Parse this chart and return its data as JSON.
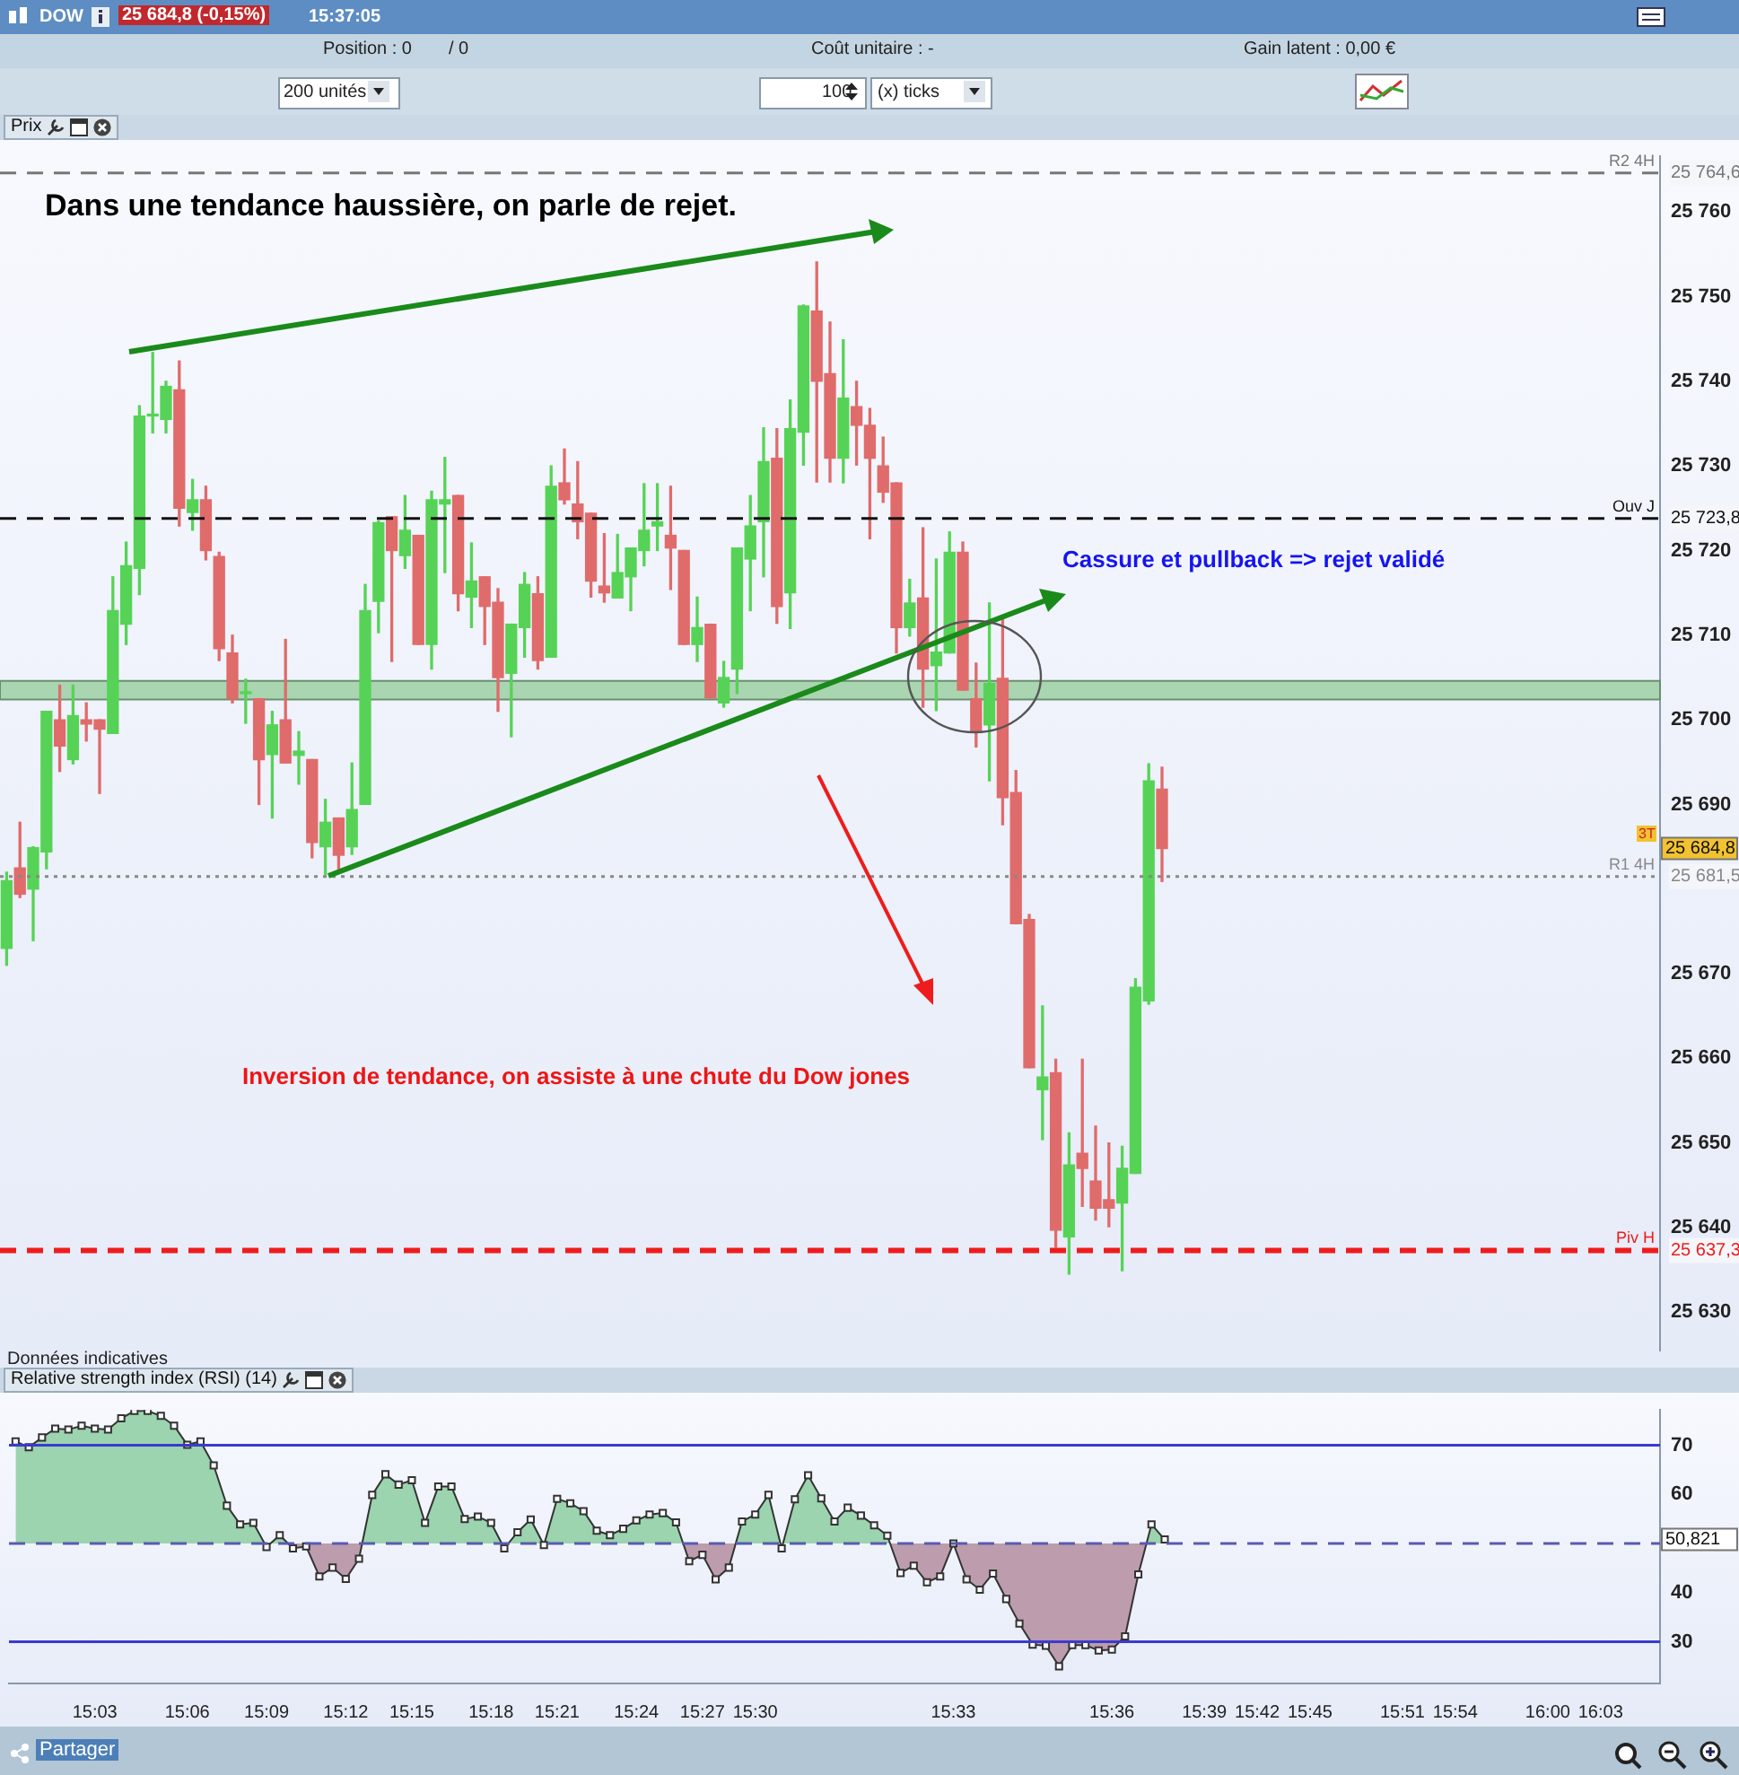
{
  "chart_data": [
    {
      "type": "other",
      "annotations": [
        "DOW",
        "25 684,8 (-0,15%)",
        "15:37:05",
        "Position : 0",
        "/ 0",
        "Coût unitaire : -",
        "Gain latent : 0,00 €",
        "200 unités",
        "100",
        "(x) ticks",
        "Partager"
      ]
    },
    {
      "type": "candlestick",
      "title": "Prix",
      "categories": [
        null,
        null,
        null,
        null,
        null,
        null,
        null,
        null,
        null,
        null,
        null,
        null,
        null,
        null,
        null,
        null,
        null,
        null,
        null,
        null,
        null,
        null,
        null,
        null,
        null,
        null,
        null,
        null,
        null,
        null,
        null,
        null,
        null,
        null,
        null,
        null,
        null,
        null,
        null,
        null,
        null,
        null,
        null,
        null,
        null,
        null,
        null,
        null,
        null,
        null,
        null,
        null,
        null,
        null,
        null,
        null,
        null,
        null,
        null,
        null,
        null,
        null,
        null,
        null,
        null,
        null,
        null,
        null,
        null,
        null,
        null,
        null,
        null,
        null,
        null,
        null,
        null,
        null,
        null,
        null,
        null,
        null,
        null,
        null,
        null,
        null,
        null,
        null,
        null,
        null,
        null,
        null,
        null,
        null,
        null,
        null,
        null,
        null,
        null,
        null,
        null,
        null,
        null,
        null,
        null,
        null,
        null,
        null,
        null,
        null,
        null,
        null,
        null,
        null,
        null,
        null,
        null,
        null,
        null,
        null,
        null,
        null,
        null,
        null,
        null
      ],
      "ohlc": [
        [
          25673,
          25682,
          25671,
          25681
        ],
        [
          25682.5,
          25687.9,
          25679,
          25679.4
        ],
        [
          25680,
          25685,
          25673.9,
          25684.9
        ],
        [
          25684.4,
          25701,
          25682.4,
          25701
        ],
        [
          25700,
          25704.1,
          25693.9,
          25696.9
        ],
        [
          25695.3,
          25704.1,
          25694.8,
          25700.5
        ],
        [
          25700,
          25702,
          25697.5,
          25699.5
        ],
        [
          25700,
          25700,
          25691.3,
          25698.9
        ],
        [
          25698.4,
          25716.9,
          25698.4,
          25712.9
        ],
        [
          25711.3,
          25721,
          25708.9,
          25718.2
        ],
        [
          25717.9,
          25737.1,
          25714.8,
          25735.9
        ],
        [
          25735.9,
          25743.4,
          25733.9,
          25735.9
        ],
        [
          25735.5,
          25740,
          25733.9,
          25739.4
        ],
        [
          25739,
          25742.4,
          25722.9,
          25725
        ],
        [
          25724.5,
          25728.4,
          25722.4,
          25726
        ],
        [
          25726,
          25727.6,
          25718.9,
          25720
        ],
        [
          25719.3,
          25719.8,
          25707,
          25708.4
        ],
        [
          25707.9,
          25710,
          25702,
          25702.5
        ],
        [
          25703.1,
          25704.8,
          25699.6,
          25703.1
        ],
        [
          25702.5,
          25702.5,
          25690,
          25695.3
        ],
        [
          25695.9,
          25701,
          25688.4,
          25699.4
        ],
        [
          25700,
          25709.5,
          25694.9,
          25694.9
        ],
        [
          25695.8,
          25698.6,
          25692.4,
          25696.3
        ],
        [
          25695.3,
          25695.3,
          25683.7,
          25685.5
        ],
        [
          25685,
          25690.6,
          25681.7,
          25687.9
        ],
        [
          25688.4,
          25688.4,
          25682.4,
          25684
        ],
        [
          25685,
          25694.9,
          25684.1,
          25689.4
        ],
        [
          25690,
          25716,
          25690,
          25712.9
        ],
        [
          25714,
          25723.5,
          25710.3,
          25723.3
        ],
        [
          25724,
          25724,
          25706.9,
          25720
        ],
        [
          25719.4,
          25726.5,
          25717.9,
          25722.4
        ],
        [
          25721.8,
          25721.8,
          25708.9,
          25708.9
        ],
        [
          25708.9,
          25727,
          25706,
          25726
        ],
        [
          25725.5,
          25731,
          25717.4,
          25726
        ],
        [
          25726.5,
          25726.5,
          25712.9,
          25714.9
        ],
        [
          25714.5,
          25720.9,
          25710.9,
          25716.4
        ],
        [
          25716.9,
          25716.9,
          25708.9,
          25713.4
        ],
        [
          25713.9,
          25715.5,
          25701,
          25705
        ],
        [
          25705.5,
          25711.3,
          25698,
          25711.3
        ],
        [
          25710.9,
          25717.4,
          25707.4,
          25716
        ],
        [
          25714.9,
          25716.9,
          25706,
          25707
        ],
        [
          25707.4,
          25730,
          25707.4,
          25727.6
        ],
        [
          25728,
          25732,
          25725.5,
          25726
        ],
        [
          25725.5,
          25730.5,
          25721.4,
          25723.4
        ],
        [
          25724.4,
          25724.4,
          25714.5,
          25716.4
        ],
        [
          25715.8,
          25722,
          25713.9,
          25715
        ],
        [
          25714.4,
          25721.9,
          25714.4,
          25717.4
        ],
        [
          25716.9,
          25720.3,
          25712.9,
          25720.3
        ],
        [
          25720,
          25727.9,
          25718.2,
          25722.4
        ],
        [
          25722.9,
          25727.9,
          25720,
          25723.4
        ],
        [
          25721.8,
          25727.6,
          25715.4,
          25720.3
        ],
        [
          25720,
          25720,
          25708.9,
          25708.9
        ],
        [
          25708.9,
          25714.5,
          25706.9,
          25710.9
        ],
        [
          25711.3,
          25711.3,
          25702.6,
          25702.6
        ],
        [
          25702,
          25706.9,
          25701.5,
          25705
        ],
        [
          25706,
          25720.3,
          25703.1,
          25720.3
        ],
        [
          25719,
          25726.5,
          25712.9,
          25722.9
        ],
        [
          25723.4,
          25734.5,
          25716.9,
          25730.5
        ],
        [
          25730.9,
          25734.4,
          25711.4,
          25713.4
        ],
        [
          25715,
          25737.8,
          25710.8,
          25734.4
        ],
        [
          25734,
          25749,
          25730.1,
          25748.9
        ],
        [
          25748.3,
          25754.1,
          25728.1,
          25740
        ],
        [
          25740.9,
          25747,
          25728.1,
          25730.9
        ],
        [
          25730.9,
          25744.9,
          25728,
          25738
        ],
        [
          25737,
          25740,
          25730.1,
          25734.8
        ],
        [
          25734.8,
          25736.8,
          25721.4,
          25730.9
        ],
        [
          25730,
          25733.4,
          25725.7,
          25726.9
        ],
        [
          25728,
          25728,
          25707.9,
          25710.9
        ],
        [
          25710.9,
          25716.6,
          25709.9,
          25713.8
        ],
        [
          25714.4,
          25722.7,
          25701.5,
          25706
        ],
        [
          25706.4,
          25719,
          25701.1,
          25708
        ],
        [
          25707.9,
          25722.2,
          25707.9,
          25719.8
        ],
        [
          25719.8,
          25721,
          25703.5,
          25703.5
        ],
        [
          25702.5,
          25706.7,
          25696.8,
          25698.5
        ],
        [
          25699.4,
          25713.8,
          25692.8,
          25704.3
        ],
        [
          25704.9,
          25711.9,
          25687.6,
          25690.8
        ],
        [
          25691.4,
          25694,
          25675.9,
          25675.9
        ],
        [
          25676.4,
          25677,
          25658.9,
          25658.9
        ],
        [
          25656.3,
          25666.2,
          25650.4,
          25657.8
        ],
        [
          25658.3,
          25659.9,
          25637.7,
          25639.7
        ],
        [
          25638.9,
          25651.2,
          25634.5,
          25647.4
        ],
        [
          25648.8,
          25659.9,
          25642.5,
          25647
        ],
        [
          25645.5,
          25652,
          25640.9,
          25642.3
        ],
        [
          25643.3,
          25650,
          25640.1,
          25642.3
        ],
        [
          25642.9,
          25649.6,
          25634.9,
          25647
        ],
        [
          25646.4,
          25669.4,
          25646.4,
          25668.4
        ],
        [
          25666.8,
          25694.8,
          25666.4,
          25692.8
        ],
        [
          25691.8,
          25694.4,
          25680.9,
          25684.8
        ],
        null,
        null,
        null,
        null,
        null,
        null,
        null,
        null,
        null,
        null,
        null,
        null,
        null,
        null,
        null,
        null,
        null,
        null,
        null,
        null,
        null,
        null,
        null,
        null,
        null,
        null,
        null,
        null,
        null,
        null,
        null,
        null,
        null,
        null,
        null,
        null,
        null
      ],
      "colors": [
        "#56d356",
        "#e06b6b",
        "#56d356",
        "#56d356",
        "#e06b6b",
        "#56d356",
        "#e06b6b",
        "#e06b6b",
        "#56d356",
        "#56d356",
        "#56d356",
        "#56d356",
        "#56d356",
        "#e06b6b",
        "#56d356",
        "#e06b6b",
        "#e06b6b",
        "#e06b6b",
        "#56d356",
        "#e06b6b",
        "#56d356",
        "#e06b6b",
        "#56d356",
        "#e06b6b",
        "#56d356",
        "#e06b6b",
        "#56d356",
        "#56d356",
        "#56d356",
        "#e06b6b",
        "#56d356",
        "#e06b6b",
        "#56d356",
        "#56d356",
        "#e06b6b",
        "#56d356",
        "#e06b6b",
        "#e06b6b",
        "#56d356",
        "#56d356",
        "#e06b6b",
        "#56d356",
        "#e06b6b",
        "#e06b6b",
        "#e06b6b",
        "#e06b6b",
        "#56d356",
        "#56d356",
        "#56d356",
        "#56d356",
        "#e06b6b",
        "#e06b6b",
        "#56d356",
        "#e06b6b",
        "#56d356",
        "#56d356",
        "#56d356",
        "#56d356",
        "#e06b6b",
        "#56d356",
        "#56d356",
        "#e06b6b",
        "#e06b6b",
        "#56d356",
        "#e06b6b",
        "#e06b6b",
        "#e06b6b",
        "#e06b6b",
        "#56d356",
        "#e06b6b",
        "#56d356",
        "#56d356",
        "#e06b6b",
        "#e06b6b",
        "#56d356",
        "#e06b6b",
        "#e06b6b",
        "#e06b6b",
        "#56d356",
        "#e06b6b",
        "#56d356",
        "#e06b6b",
        "#e06b6b",
        "#e06b6b",
        "#56d356",
        "#56d356",
        "#56d356",
        "#e06b6b",
        null,
        null,
        null,
        null,
        null,
        null,
        null,
        null,
        null,
        null,
        null,
        null,
        null,
        null,
        null,
        null,
        null,
        null,
        null,
        null,
        null,
        null,
        null,
        null,
        null,
        null,
        null,
        null,
        null,
        null,
        null,
        null,
        null,
        null,
        null,
        null,
        null
      ],
      "value_labels": [
        null,
        null,
        null,
        null,
        null,
        null,
        null,
        null,
        null,
        null,
        null,
        null,
        null,
        null,
        null,
        null,
        null,
        null,
        null,
        null,
        null,
        null,
        null,
        null,
        null,
        null,
        null,
        null,
        null,
        null,
        null,
        null,
        null,
        null,
        null,
        null,
        null,
        null,
        null,
        null,
        null,
        null,
        null,
        null,
        null,
        null,
        null,
        null,
        null,
        null,
        null,
        null,
        null,
        null,
        null,
        null,
        null,
        null,
        null,
        null,
        null,
        null,
        null,
        null,
        null,
        null,
        null,
        null,
        null,
        null,
        null,
        null,
        null,
        null,
        null,
        null,
        null,
        null,
        null,
        null,
        null,
        null,
        null,
        null,
        null,
        null,
        null,
        "25 684,8",
        null,
        null,
        null,
        null,
        null,
        null,
        null,
        null,
        null,
        null,
        null,
        null,
        null,
        null,
        null,
        null,
        null,
        null,
        null,
        null,
        null,
        null,
        null,
        null,
        null,
        null,
        null,
        null,
        null,
        null,
        null,
        null,
        null,
        null,
        null,
        null,
        null
      ],
      "ylim": [
        25625.5,
        25766.6
      ],
      "yticks": [
        {
          "value": 25630,
          "label": "25 630"
        },
        {
          "value": 25637.3,
          "label": "25 637,3"
        },
        {
          "value": 25640,
          "label": "25 640"
        },
        {
          "value": 25650,
          "label": "25 650"
        },
        {
          "value": 25660,
          "label": "25 660"
        },
        {
          "value": 25670,
          "label": "25 670"
        },
        {
          "value": 25681.5,
          "label": "25 681,5"
        },
        {
          "value": 25690,
          "label": "25 690"
        },
        {
          "value": 25700,
          "label": "25 700"
        },
        {
          "value": 25710,
          "label": "25 710"
        },
        {
          "value": 25720,
          "label": "25 720"
        },
        {
          "value": 25723.8,
          "label": "25 723,8"
        },
        {
          "value": 25730,
          "label": "25 730"
        },
        {
          "value": 25740,
          "label": "25 740"
        },
        {
          "value": 25750,
          "label": "25 750"
        },
        {
          "value": 25760,
          "label": "25 760"
        },
        {
          "value": 25764.6,
          "label": "25 764,6"
        }
      ],
      "tick_labels": "y",
      "ref_lines": [
        {
          "axis": "y",
          "value": 25764.6,
          "label": "R2 4H",
          "color": "#777777",
          "line_style": "dashed"
        },
        {
          "axis": "y",
          "value": 25723.8,
          "label": "Ouv J",
          "color": "#111111",
          "line_style": "dashed"
        },
        {
          "axis": "y",
          "value": 25681.5,
          "label": "R1 4H",
          "color": "#888888",
          "line_style": "dotted"
        },
        {
          "axis": "y",
          "value": 25637.3,
          "label": "Piv H",
          "color": "#ee1c1c",
          "line_style": "dashed"
        }
      ],
      "bands": [
        {
          "axis": "y",
          "from": 25702.4,
          "to": 25704.6,
          "color": "#a9d5b0"
        }
      ],
      "annotations": [
        "Dans une tendance haussière, on parle de rejet.",
        "Cassure et pullback => rejet validé",
        "Inversion de tendance, on assiste à une chute du Dow jones",
        "3T",
        "Données indicatives"
      ]
    },
    {
      "type": "area",
      "title": "Relative strength index (RSI) (14)",
      "categories": [
        null,
        null,
        null,
        null,
        null,
        null,
        "15:03",
        null,
        null,
        null,
        null,
        null,
        null,
        "15:06",
        null,
        null,
        null,
        null,
        null,
        "15:09",
        null,
        null,
        null,
        null,
        null,
        "15:12",
        null,
        null,
        null,
        null,
        "15:15",
        null,
        null,
        null,
        null,
        null,
        "15:18",
        null,
        null,
        null,
        null,
        "15:21",
        null,
        null,
        null,
        null,
        null,
        "15:24",
        null,
        null,
        null,
        null,
        "15:27",
        null,
        null,
        null,
        "15:30",
        null,
        null,
        null,
        null,
        null,
        null,
        null,
        null,
        null,
        null,
        null,
        null,
        null,
        null,
        "15:33",
        null,
        null,
        null,
        null,
        null,
        null,
        null,
        null,
        null,
        null,
        null,
        "15:36",
        null,
        null,
        null,
        null,
        null,
        null,
        "15:39",
        null,
        null,
        null,
        "15:42",
        null,
        null,
        null,
        "15:45",
        null,
        null,
        null,
        null,
        null,
        null,
        "15:51",
        null,
        null,
        null,
        "15:54",
        null,
        null,
        null,
        null,
        null,
        null,
        "16:00",
        null,
        null,
        null,
        "16:03",
        null,
        null,
        null,
        null
      ],
      "series": [
        {
          "color": "#333333",
          "values": [
            70.8,
            69.6,
            71.6,
            73.4,
            73.2,
            74,
            73.4,
            73.2,
            75.5,
            77,
            77,
            76,
            74,
            70.1,
            70.8,
            65.9,
            57.7,
            53.9,
            54.2,
            49.3,
            51.7,
            49,
            49.4,
            43.3,
            45.1,
            42.8,
            46.9,
            59.9,
            64.1,
            62,
            62.9,
            54.2,
            61.6,
            61.6,
            55,
            55.5,
            54.2,
            49,
            52.3,
            54.9,
            49.7,
            59.1,
            58.2,
            56.6,
            52.6,
            51.7,
            53,
            54.7,
            55.9,
            56.2,
            54.3,
            46.4,
            47.7,
            42.7,
            45.1,
            54.5,
            55.9,
            59.9,
            49,
            59,
            63.9,
            59.2,
            54.5,
            57.3,
            55.7,
            53.7,
            51.6,
            44,
            45.5,
            42.1,
            43.3,
            50,
            42.7,
            40.6,
            43.9,
            38.7,
            33.7,
            29.4,
            29.2,
            25,
            29.3,
            29.3,
            28.2,
            28.4,
            31.1,
            43.7,
            53.9,
            50.821,
            null,
            null,
            null,
            null,
            null,
            null,
            null,
            null,
            null,
            null,
            null,
            null,
            null,
            null,
            null,
            null,
            null,
            null,
            null,
            null,
            null,
            null,
            null,
            null,
            null,
            null,
            null,
            null,
            null,
            null,
            null,
            null,
            null,
            null,
            null,
            null,
            null
          ]
        }
      ],
      "colors": [
        "#9bd4ae",
        "#bc9cad"
      ],
      "value_labels": [
        null,
        null,
        null,
        null,
        null,
        null,
        null,
        null,
        null,
        null,
        null,
        null,
        null,
        null,
        null,
        null,
        null,
        null,
        null,
        null,
        null,
        null,
        null,
        null,
        null,
        null,
        null,
        null,
        null,
        null,
        null,
        null,
        null,
        null,
        null,
        null,
        null,
        null,
        null,
        null,
        null,
        null,
        null,
        null,
        null,
        null,
        null,
        null,
        null,
        null,
        null,
        null,
        null,
        null,
        null,
        null,
        null,
        null,
        null,
        null,
        null,
        null,
        null,
        null,
        null,
        null,
        null,
        null,
        null,
        null,
        null,
        null,
        null,
        null,
        null,
        null,
        null,
        null,
        null,
        null,
        null,
        null,
        null,
        null,
        null,
        null,
        null,
        "50,821"
      ],
      "marker": "square",
      "ylim": [
        21.5,
        77.2
      ],
      "yticks": [
        30,
        40,
        60,
        70
      ],
      "ref_lines": [
        {
          "axis": "y",
          "value": 70,
          "color": "#3a3ad0",
          "line_style": "solid"
        },
        {
          "axis": "y",
          "value": 50,
          "color": "#5a5ab0",
          "line_style": "dashed"
        },
        {
          "axis": "y",
          "value": 30,
          "color": "#3a3ad0",
          "line_style": "solid"
        }
      ]
    }
  ]
}
